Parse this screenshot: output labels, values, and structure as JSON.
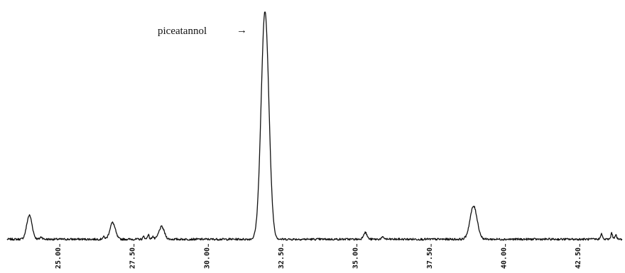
{
  "chart_data": {
    "type": "line",
    "title": "",
    "xlabel": "",
    "ylabel": "",
    "xlim": [
      23.3,
      44.0
    ],
    "ylim": [
      0,
      100
    ],
    "grid": false,
    "legend": "none",
    "line_color": "#111111",
    "tick_labels": [
      "25.00",
      "27.50",
      "30.00",
      "32.50",
      "35.00",
      "37.50",
      "40.00",
      "42.50"
    ],
    "tick_values": [
      25.0,
      27.5,
      30.0,
      32.5,
      35.0,
      37.5,
      40.0,
      42.5
    ],
    "baseline": 0.5,
    "peaks": [
      {
        "x": 24.05,
        "height": 10.5,
        "width": 0.09
      },
      {
        "x": 24.45,
        "height": 1.0,
        "width": 0.04
      },
      {
        "x": 26.55,
        "height": 1.0,
        "width": 0.04
      },
      {
        "x": 26.85,
        "height": 7.3,
        "width": 0.09
      },
      {
        "x": 27.9,
        "height": 1.2,
        "width": 0.03
      },
      {
        "x": 28.05,
        "height": 2.0,
        "width": 0.03
      },
      {
        "x": 28.2,
        "height": 1.3,
        "width": 0.03
      },
      {
        "x": 28.5,
        "height": 5.5,
        "width": 0.09
      },
      {
        "x": 31.98,
        "height": 100.0,
        "width": 0.13
      },
      {
        "x": 35.35,
        "height": 3.0,
        "width": 0.06
      },
      {
        "x": 35.95,
        "height": 0.8,
        "width": 0.05
      },
      {
        "x": 39.0,
        "height": 14.5,
        "width": 0.12
      },
      {
        "x": 43.3,
        "height": 2.5,
        "width": 0.03
      },
      {
        "x": 43.65,
        "height": 2.6,
        "width": 0.03
      },
      {
        "x": 43.78,
        "height": 2.0,
        "width": 0.03
      }
    ],
    "annotations": [
      {
        "text": "piceatannol",
        "target_x": 31.98,
        "arrow": "→"
      }
    ]
  }
}
